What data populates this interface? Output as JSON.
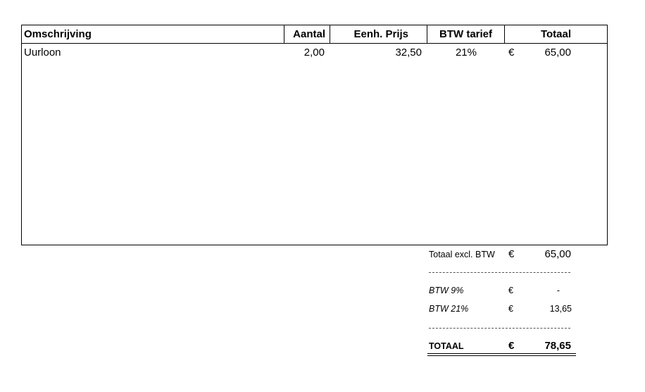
{
  "table": {
    "headers": [
      "Omschrijving",
      "Aantal",
      "Eenh. Prijs",
      "BTW tarief",
      "Totaal"
    ],
    "rows": [
      [
        "Uurloon",
        "2,00",
        "32,50",
        "21%",
        "€",
        "65,00"
      ]
    ]
  },
  "summary": [
    {
      "label": "Totaal excl. BTW",
      "currency": "€",
      "amount": "65,00"
    },
    {
      "label": "BTW 9%",
      "currency": "€",
      "amount": "-"
    },
    {
      "label": "BTW 21%",
      "currency": "€",
      "amount": "13,65"
    },
    {
      "label": "TOTAAL",
      "currency": "€",
      "amount": "78,65"
    }
  ]
}
